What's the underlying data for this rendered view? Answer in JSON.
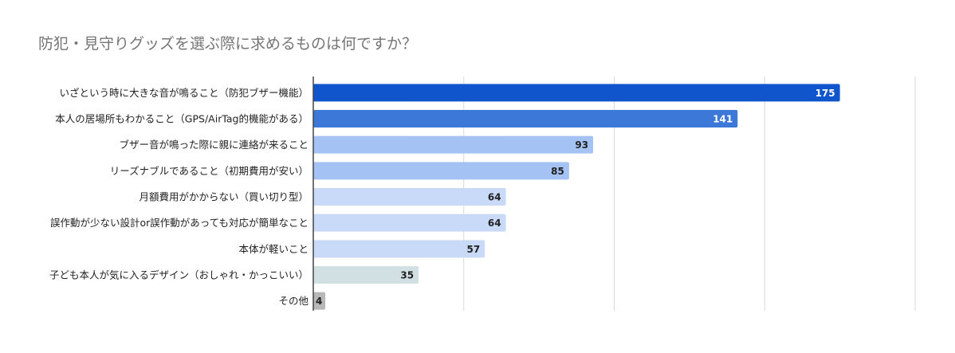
{
  "chart_data": {
    "type": "bar",
    "orientation": "horizontal",
    "title": "防犯・見守りグッズを選ぶ際に求めるものは何ですか？",
    "xlabel": "",
    "ylabel": "",
    "xlim": [
      0,
      200
    ],
    "grid": true,
    "gridline_interval": 50,
    "legend": "none",
    "categories": [
      "いざという時に大きな音が鳴ること（防犯ブザー機能）",
      "本人の居場所もわかること（GPS/AirTag的機能がある）",
      "ブザー音が鳴った際に親に連絡が来ること",
      "リーズナブルであること（初期費用が安い）",
      "月額費用がかからない（買い切り型）",
      "誤作動が少ない設計or誤作動があっても対応が簡単なこと",
      "本体が軽いこと",
      "子ども本人が気に入るデザイン（おしゃれ・かっこいい）",
      "その他"
    ],
    "values": [
      175,
      141,
      93,
      85,
      64,
      64,
      57,
      35,
      4
    ],
    "bar_colors": [
      "#1155cc",
      "#3c78d8",
      "#a4c2f4",
      "#a4c2f4",
      "#c9daf8",
      "#c9daf8",
      "#c9daf8",
      "#d0e0e3",
      "#b7b7b7"
    ],
    "label_colors": [
      "#ffffff",
      "#ffffff",
      "#222222",
      "#222222",
      "#222222",
      "#222222",
      "#222222",
      "#222222",
      "#222222"
    ]
  }
}
